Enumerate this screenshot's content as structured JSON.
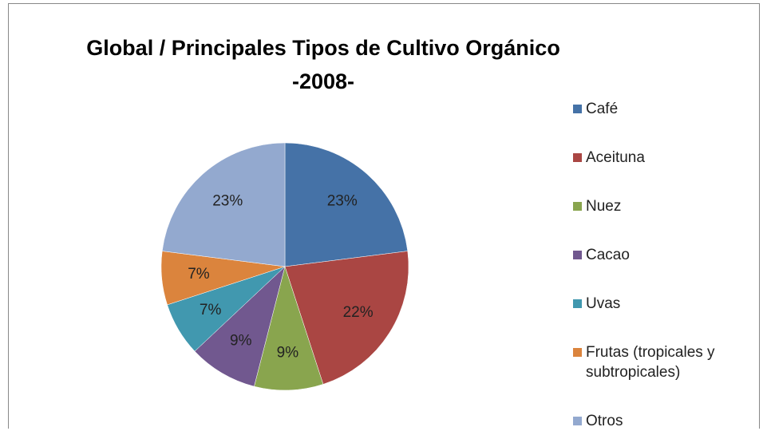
{
  "chart_data": {
    "type": "pie",
    "title": "Global / Principales Tipos de Cultivo Orgánico",
    "subtitle": "-2008-",
    "categories": [
      "Café",
      "Aceituna",
      "Nuez",
      "Cacao",
      "Uvas",
      "Frutas (tropicales y subtropicales)",
      "Otros"
    ],
    "values": [
      23,
      22,
      9,
      9,
      7,
      7,
      23
    ],
    "value_labels": [
      "23%",
      "22%",
      "9%",
      "9%",
      "7%",
      "7%",
      "23%"
    ],
    "colors": [
      "#4572a7",
      "#aa4643",
      "#89a54e",
      "#71588f",
      "#4198af",
      "#db843d",
      "#93a9cf"
    ],
    "legend": "right"
  }
}
